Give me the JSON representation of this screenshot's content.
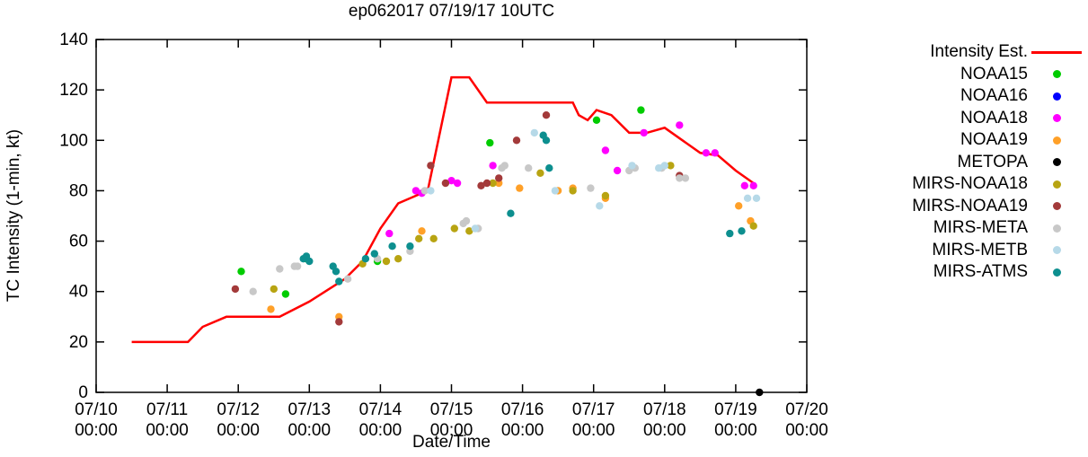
{
  "figure": {
    "background": "#ffffff"
  },
  "chart_data": {
    "type": "scatter",
    "title": "ep062017 07/19/17 10UTC",
    "xlabel": "Date/Time",
    "ylabel": "TC Intensity (1-min, kt)",
    "ylim": [
      0,
      140
    ],
    "yticks": [
      0,
      20,
      40,
      60,
      80,
      100,
      120,
      140
    ],
    "x_hours_range": [
      0,
      240
    ],
    "xticks": [
      {
        "hours": 0,
        "date": "07/10",
        "time": "00:00"
      },
      {
        "hours": 24,
        "date": "07/11",
        "time": "00:00"
      },
      {
        "hours": 48,
        "date": "07/12",
        "time": "00:00"
      },
      {
        "hours": 72,
        "date": "07/13",
        "time": "00:00"
      },
      {
        "hours": 96,
        "date": "07/14",
        "time": "00:00"
      },
      {
        "hours": 120,
        "date": "07/15",
        "time": "00:00"
      },
      {
        "hours": 144,
        "date": "07/16",
        "time": "00:00"
      },
      {
        "hours": 168,
        "date": "07/17",
        "time": "00:00"
      },
      {
        "hours": 192,
        "date": "07/18",
        "time": "00:00"
      },
      {
        "hours": 216,
        "date": "07/19",
        "time": "00:00"
      },
      {
        "hours": 240,
        "date": "07/20",
        "time": "00:00"
      }
    ],
    "grid": false,
    "legend_position": "outside-right",
    "line_series": {
      "name": "Intensity Est.",
      "color": "#ff0000",
      "points": [
        [
          12,
          20
        ],
        [
          31,
          20
        ],
        [
          36,
          26
        ],
        [
          44,
          30
        ],
        [
          62,
          30
        ],
        [
          72,
          36
        ],
        [
          84,
          45
        ],
        [
          90,
          52
        ],
        [
          96,
          65
        ],
        [
          102,
          75
        ],
        [
          108,
          78
        ],
        [
          112,
          80
        ],
        [
          120,
          125
        ],
        [
          126,
          125
        ],
        [
          132,
          115
        ],
        [
          161,
          115
        ],
        [
          163,
          110
        ],
        [
          166,
          108
        ],
        [
          169,
          112
        ],
        [
          174,
          110
        ],
        [
          180,
          103
        ],
        [
          186,
          103
        ],
        [
          192,
          105
        ],
        [
          198,
          100
        ],
        [
          204,
          95
        ],
        [
          210,
          94
        ],
        [
          216,
          88
        ],
        [
          222,
          83
        ]
      ]
    },
    "scatter_series": [
      {
        "name": "NOAA15",
        "color": "#00cc00",
        "points": [
          [
            49,
            48
          ],
          [
            64,
            39
          ],
          [
            71,
            53
          ],
          [
            95,
            52
          ],
          [
            133,
            99
          ],
          [
            169,
            108
          ],
          [
            184,
            112
          ]
        ]
      },
      {
        "name": "NOAA16",
        "color": "#0000ff",
        "points": []
      },
      {
        "name": "NOAA18",
        "color": "#ff00ff",
        "points": [
          [
            99,
            63
          ],
          [
            108,
            80
          ],
          [
            110,
            79
          ],
          [
            120,
            84
          ],
          [
            122,
            83
          ],
          [
            134,
            90
          ],
          [
            172,
            96
          ],
          [
            176,
            88
          ],
          [
            185,
            103
          ],
          [
            197,
            106
          ],
          [
            206,
            95
          ],
          [
            209,
            95
          ],
          [
            219,
            82
          ],
          [
            222,
            82
          ]
        ]
      },
      {
        "name": "NOAA19",
        "color": "#ffa028",
        "points": [
          [
            59,
            33
          ],
          [
            82,
            30
          ],
          [
            110,
            64
          ],
          [
            136,
            83
          ],
          [
            143,
            81
          ],
          [
            156,
            80
          ],
          [
            161,
            81
          ],
          [
            172,
            77
          ],
          [
            217,
            74
          ],
          [
            221,
            68
          ]
        ]
      },
      {
        "name": "METOPA",
        "color": "#000000",
        "points": [
          [
            224,
            0
          ]
        ]
      },
      {
        "name": "MIRS-NOAA18",
        "color": "#b8a412",
        "points": [
          [
            60,
            41
          ],
          [
            90,
            51
          ],
          [
            98,
            52
          ],
          [
            102,
            53
          ],
          [
            109,
            61
          ],
          [
            114,
            61
          ],
          [
            121,
            65
          ],
          [
            126,
            64
          ],
          [
            134,
            83
          ],
          [
            150,
            87
          ],
          [
            161,
            80
          ],
          [
            172,
            78
          ],
          [
            194,
            90
          ],
          [
            222,
            66
          ]
        ]
      },
      {
        "name": "MIRS-NOAA19",
        "color": "#a33a3a",
        "points": [
          [
            47,
            41
          ],
          [
            82,
            28
          ],
          [
            113,
            90
          ],
          [
            118,
            83
          ],
          [
            130,
            82
          ],
          [
            132,
            83
          ],
          [
            136,
            85
          ],
          [
            142,
            100
          ],
          [
            152,
            110
          ],
          [
            197,
            86
          ]
        ]
      },
      {
        "name": "MIRS-META",
        "color": "#c8c8c8",
        "points": [
          [
            53,
            40
          ],
          [
            62,
            49
          ],
          [
            67,
            50
          ],
          [
            68,
            50
          ],
          [
            85,
            45
          ],
          [
            95,
            53
          ],
          [
            106,
            56
          ],
          [
            111,
            80
          ],
          [
            124,
            67
          ],
          [
            125,
            68
          ],
          [
            129,
            65
          ],
          [
            137,
            89
          ],
          [
            138,
            90
          ],
          [
            146,
            89
          ],
          [
            167,
            81
          ],
          [
            180,
            88
          ],
          [
            182,
            89
          ],
          [
            191,
            89
          ],
          [
            197,
            85
          ],
          [
            199,
            85
          ]
        ]
      },
      {
        "name": "MIRS-METB",
        "color": "#b6d9e8",
        "points": [
          [
            113,
            80
          ],
          [
            128,
            65
          ],
          [
            148,
            103
          ],
          [
            155,
            80
          ],
          [
            170,
            74
          ],
          [
            181,
            90
          ],
          [
            190,
            89
          ],
          [
            192,
            90
          ],
          [
            220,
            77
          ],
          [
            223,
            77
          ]
        ]
      },
      {
        "name": "MIRS-ATMS",
        "color": "#0d8f8f",
        "points": [
          [
            70,
            53
          ],
          [
            71,
            54
          ],
          [
            72,
            52
          ],
          [
            80,
            50
          ],
          [
            81,
            48
          ],
          [
            82,
            44
          ],
          [
            91,
            53
          ],
          [
            94,
            55
          ],
          [
            100,
            58
          ],
          [
            106,
            58
          ],
          [
            140,
            71
          ],
          [
            151,
            102
          ],
          [
            152,
            100
          ],
          [
            153,
            89
          ],
          [
            214,
            63
          ],
          [
            218,
            64
          ]
        ]
      }
    ]
  }
}
